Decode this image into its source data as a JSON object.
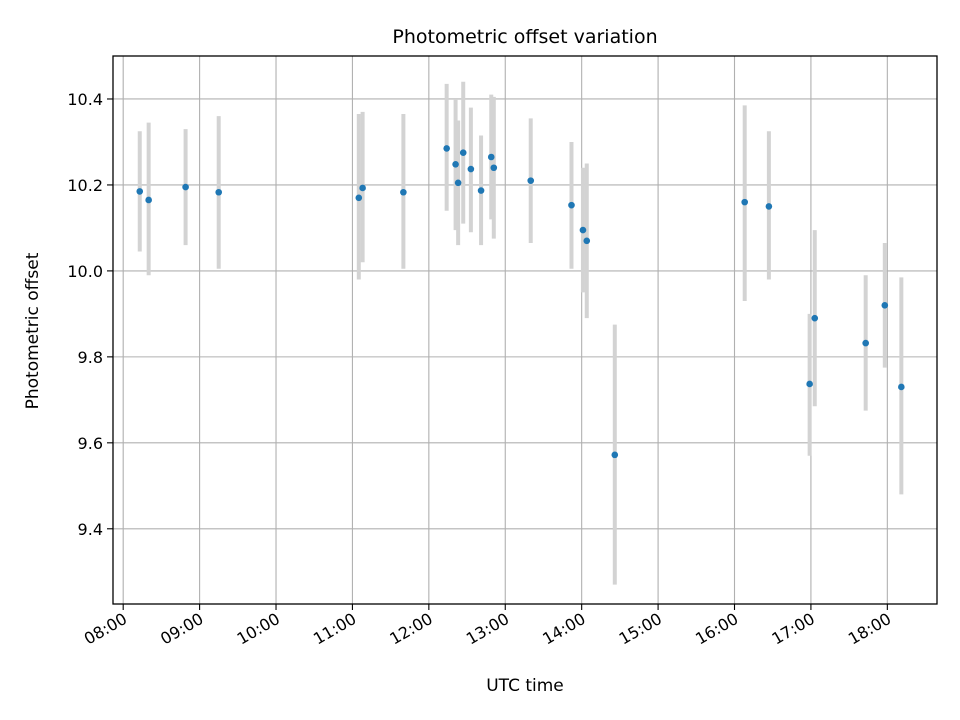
{
  "chart_data": {
    "type": "scatter",
    "title": "Photometric offset variation",
    "xlabel": "UTC time",
    "ylabel": "Photometric offset",
    "x_tick_labels": [
      "08:00",
      "09:00",
      "10:00",
      "11:00",
      "12:00",
      "13:00",
      "14:00",
      "15:00",
      "16:00",
      "17:00",
      "18:00"
    ],
    "y_tick_labels": [
      "9.4",
      "9.6",
      "9.8",
      "10.0",
      "10.2",
      "10.4"
    ],
    "xlim": [
      "07:52",
      "18:39"
    ],
    "ylim": [
      9.225,
      10.5
    ],
    "grid": true,
    "colors": {
      "point": "#1f77b4",
      "errorbar": "#d3d3d3",
      "grid": "#b0b0b0"
    },
    "series": [
      {
        "points": [
          {
            "x": "08:13",
            "y": 10.185,
            "err_low": 10.045,
            "err_high": 10.325
          },
          {
            "x": "08:20",
            "y": 10.165,
            "err_low": 9.99,
            "err_high": 10.345
          },
          {
            "x": "08:49",
            "y": 10.195,
            "err_low": 10.06,
            "err_high": 10.33
          },
          {
            "x": "09:15",
            "y": 10.183,
            "err_low": 10.005,
            "err_high": 10.36
          },
          {
            "x": "11:05",
            "y": 10.17,
            "err_low": 9.98,
            "err_high": 10.365
          },
          {
            "x": "11:08",
            "y": 10.193,
            "err_low": 10.02,
            "err_high": 10.37
          },
          {
            "x": "11:40",
            "y": 10.183,
            "err_low": 10.005,
            "err_high": 10.365
          },
          {
            "x": "12:14",
            "y": 10.285,
            "err_low": 10.14,
            "err_high": 10.435
          },
          {
            "x": "12:21",
            "y": 10.248,
            "err_low": 10.095,
            "err_high": 10.4
          },
          {
            "x": "12:23",
            "y": 10.205,
            "err_low": 10.06,
            "err_high": 10.35
          },
          {
            "x": "12:27",
            "y": 10.275,
            "err_low": 10.11,
            "err_high": 10.44
          },
          {
            "x": "12:33",
            "y": 10.237,
            "err_low": 10.09,
            "err_high": 10.38
          },
          {
            "x": "12:41",
            "y": 10.187,
            "err_low": 10.06,
            "err_high": 10.315
          },
          {
            "x": "12:49",
            "y": 10.265,
            "err_low": 10.12,
            "err_high": 10.41
          },
          {
            "x": "12:51",
            "y": 10.24,
            "err_low": 10.075,
            "err_high": 10.405
          },
          {
            "x": "13:20",
            "y": 10.21,
            "err_low": 10.065,
            "err_high": 10.355
          },
          {
            "x": "13:52",
            "y": 10.153,
            "err_low": 10.005,
            "err_high": 10.3
          },
          {
            "x": "14:01",
            "y": 10.095,
            "err_low": 9.95,
            "err_high": 10.24
          },
          {
            "x": "14:04",
            "y": 10.07,
            "err_low": 9.89,
            "err_high": 10.25
          },
          {
            "x": "14:26",
            "y": 9.572,
            "err_low": 9.27,
            "err_high": 9.875
          },
          {
            "x": "16:08",
            "y": 10.16,
            "err_low": 9.93,
            "err_high": 10.385
          },
          {
            "x": "16:27",
            "y": 10.15,
            "err_low": 9.98,
            "err_high": 10.325
          },
          {
            "x": "16:59",
            "y": 9.737,
            "err_low": 9.57,
            "err_high": 9.9
          },
          {
            "x": "17:03",
            "y": 9.89,
            "err_low": 9.685,
            "err_high": 10.095
          },
          {
            "x": "17:43",
            "y": 9.832,
            "err_low": 9.675,
            "err_high": 9.99
          },
          {
            "x": "17:58",
            "y": 9.92,
            "err_low": 9.775,
            "err_high": 10.065
          },
          {
            "x": "18:11",
            "y": 9.73,
            "err_low": 9.48,
            "err_high": 9.985
          }
        ]
      }
    ]
  }
}
